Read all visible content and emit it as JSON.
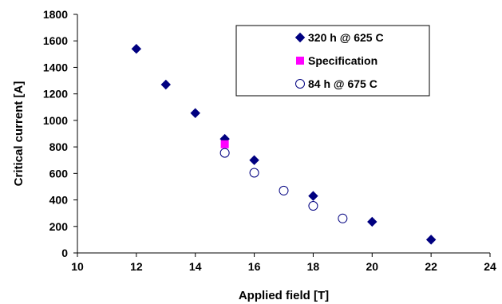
{
  "chart_data": {
    "type": "scatter",
    "xlabel": "Applied field [T]",
    "ylabel": "Critical current [A]",
    "xlim": [
      10,
      24
    ],
    "ylim": [
      0,
      1800
    ],
    "xticks": [
      10,
      12,
      14,
      16,
      18,
      20,
      22,
      24
    ],
    "yticks": [
      0,
      200,
      400,
      600,
      800,
      1000,
      1200,
      1400,
      1600,
      1800
    ],
    "grid": false,
    "legend_position": "top-right",
    "series": [
      {
        "name": "320 h @ 625 C",
        "marker": "diamond",
        "color": "#000080",
        "points": [
          {
            "x": 12,
            "y": 1540
          },
          {
            "x": 13,
            "y": 1270
          },
          {
            "x": 14,
            "y": 1055
          },
          {
            "x": 15,
            "y": 860
          },
          {
            "x": 16,
            "y": 700
          },
          {
            "x": 18,
            "y": 430
          },
          {
            "x": 20,
            "y": 235
          },
          {
            "x": 22,
            "y": 100
          }
        ]
      },
      {
        "name": "Specification",
        "marker": "square",
        "color": "#ff00ff",
        "points": [
          {
            "x": 15,
            "y": 820
          }
        ]
      },
      {
        "name": "84 h @ 675 C",
        "marker": "open-circle",
        "color": "#000080",
        "points": [
          {
            "x": 15,
            "y": 755
          },
          {
            "x": 16,
            "y": 605
          },
          {
            "x": 17,
            "y": 470
          },
          {
            "x": 18,
            "y": 355
          },
          {
            "x": 19,
            "y": 260
          }
        ]
      }
    ]
  }
}
